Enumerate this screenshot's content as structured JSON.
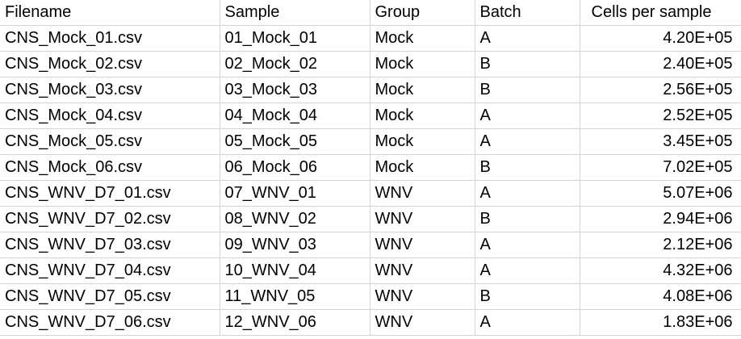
{
  "table": {
    "headers": [
      "Filename",
      "Sample",
      "Group",
      "Batch",
      "Cells per sample"
    ],
    "rows": [
      [
        "CNS_Mock_01.csv",
        "01_Mock_01",
        "Mock",
        "A",
        "4.20E+05"
      ],
      [
        "CNS_Mock_02.csv",
        "02_Mock_02",
        "Mock",
        "B",
        "2.40E+05"
      ],
      [
        "CNS_Mock_03.csv",
        "03_Mock_03",
        "Mock",
        "B",
        "2.56E+05"
      ],
      [
        "CNS_Mock_04.csv",
        "04_Mock_04",
        "Mock",
        "A",
        "2.52E+05"
      ],
      [
        "CNS_Mock_05.csv",
        "05_Mock_05",
        "Mock",
        "A",
        "3.45E+05"
      ],
      [
        "CNS_Mock_06.csv",
        "06_Mock_06",
        "Mock",
        "B",
        "7.02E+05"
      ],
      [
        "CNS_WNV_D7_01.csv",
        "07_WNV_01",
        "WNV",
        "A",
        "5.07E+06"
      ],
      [
        "CNS_WNV_D7_02.csv",
        "08_WNV_02",
        "WNV",
        "B",
        "2.94E+06"
      ],
      [
        "CNS_WNV_D7_03.csv",
        "09_WNV_03",
        "WNV",
        "A",
        "2.12E+06"
      ],
      [
        "CNS_WNV_D7_04.csv",
        "10_WNV_04",
        "WNV",
        "A",
        "4.32E+06"
      ],
      [
        "CNS_WNV_D7_05.csv",
        "11_WNV_05",
        "WNV",
        "B",
        "4.08E+06"
      ],
      [
        "CNS_WNV_D7_06.csv",
        "12_WNV_06",
        "WNV",
        "A",
        "1.83E+06"
      ]
    ]
  },
  "colors": {
    "gridline": "#d4d4d4",
    "text": "#000000",
    "background": "#ffffff"
  }
}
